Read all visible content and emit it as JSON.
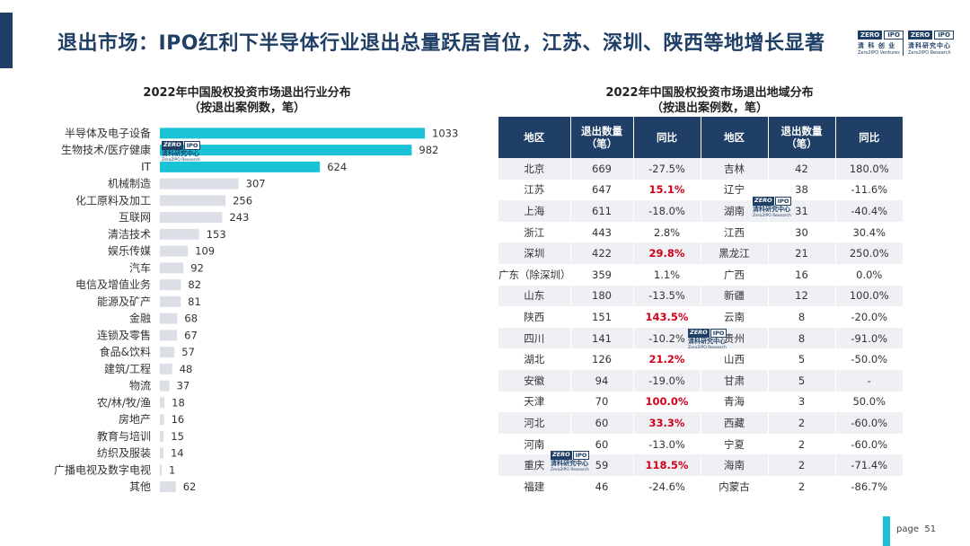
{
  "slide": {
    "title": "退出市场：IPO红利下半导体行业退出总量跃居首位，江苏、深圳、陕西等地增长显著",
    "page_label": "page",
    "page_number": "51"
  },
  "logos": {
    "header": [
      {
        "zero": "ZERO",
        "ipo": "IPO",
        "cn": "清 科 创 业",
        "en": "Zero2IPO Ventures"
      },
      {
        "zero": "ZERO",
        "ipo": "IPO",
        "cn": "清科研究中心",
        "en": "Zero2IPO Research"
      }
    ],
    "watermark": {
      "zero": "ZERO",
      "ipo": "IPO",
      "cn": "清科研究中心",
      "en": "Zero2IPO Research"
    }
  },
  "colors": {
    "primary": "#1f3f66",
    "highlight_bar": "#19c2d4",
    "normal_bar": "#dcdfe6",
    "increase_text": "#d0021b"
  },
  "chart_data": [
    {
      "type": "bar",
      "orientation": "horizontal",
      "title_line1": "2022年中国股权投资市场退出行业分布",
      "title_line2": "（按退出案例数，笔）",
      "categories": [
        "半导体及电子设备",
        "生物技术/医疗健康",
        "IT",
        "机械制造",
        "化工原料及加工",
        "互联网",
        "清洁技术",
        "娱乐传媒",
        "汽车",
        "电信及增值业务",
        "能源及矿产",
        "金融",
        "连锁及零售",
        "食品&饮料",
        "建筑/工程",
        "物流",
        "农/林/牧/渔",
        "房地产",
        "教育与培训",
        "纺织及服装",
        "广播电视及数字电视",
        "其他"
      ],
      "values": [
        1033,
        982,
        624,
        307,
        256,
        243,
        153,
        109,
        92,
        82,
        81,
        68,
        67,
        57,
        48,
        37,
        18,
        16,
        15,
        14,
        1,
        62
      ],
      "highlighted": [
        0,
        1,
        2
      ],
      "grid": false,
      "legend": "none"
    },
    {
      "type": "table",
      "title_line1": "2022年中国股权投资市场退出地域分布",
      "title_line2": "（按退出案例数，笔）",
      "columns": [
        "地区",
        "退出数量\n（笔）",
        "同比",
        "地区",
        "退出数量\n（笔）",
        "同比"
      ],
      "rows": [
        [
          "北京",
          "669",
          "-27.5%",
          "吉林",
          "42",
          "180.0%"
        ],
        [
          "江苏",
          "647",
          "15.1%",
          "辽宁",
          "38",
          "-11.6%"
        ],
        [
          "上海",
          "611",
          "-18.0%",
          "湖南",
          "31",
          "-40.4%"
        ],
        [
          "浙江",
          "443",
          "2.8%",
          "江西",
          "30",
          "30.4%"
        ],
        [
          "深圳",
          "422",
          "29.8%",
          "黑龙江",
          "21",
          "250.0%"
        ],
        [
          "广东（除深圳）",
          "359",
          "1.1%",
          "广西",
          "16",
          "0.0%"
        ],
        [
          "山东",
          "180",
          "-13.5%",
          "新疆",
          "12",
          "100.0%"
        ],
        [
          "陕西",
          "151",
          "143.5%",
          "云南",
          "8",
          "-20.0%"
        ],
        [
          "四川",
          "141",
          "-10.2%",
          "贵州",
          "8",
          "-91.0%"
        ],
        [
          "湖北",
          "126",
          "21.2%",
          "山西",
          "5",
          "-50.0%"
        ],
        [
          "安徽",
          "94",
          "-19.0%",
          "甘肃",
          "5",
          "-"
        ],
        [
          "天津",
          "70",
          "100.0%",
          "青海",
          "3",
          "50.0%"
        ],
        [
          "河北",
          "60",
          "33.3%",
          "西藏",
          "2",
          "-60.0%"
        ],
        [
          "河南",
          "60",
          "-13.0%",
          "宁夏",
          "2",
          "-60.0%"
        ],
        [
          "重庆",
          "59",
          "118.5%",
          "海南",
          "2",
          "-71.4%"
        ],
        [
          "福建",
          "46",
          "-24.6%",
          "内蒙古",
          "2",
          "-86.7%"
        ]
      ],
      "red_cells": [
        [
          1,
          2
        ],
        [
          4,
          2
        ],
        [
          7,
          2
        ],
        [
          9,
          2
        ],
        [
          11,
          2
        ],
        [
          12,
          2
        ],
        [
          14,
          2
        ]
      ]
    }
  ]
}
